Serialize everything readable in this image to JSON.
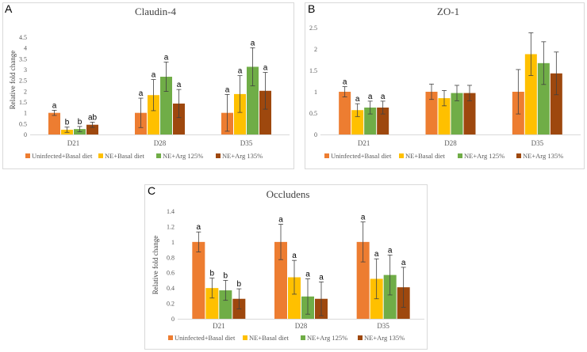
{
  "chart_data": [
    {
      "panel": "A",
      "type": "bar",
      "title": "Claudin-4",
      "ylabel": "Relative fold change",
      "xlabel": "",
      "ylim": [
        0,
        4.5
      ],
      "yticks": [
        "0",
        "0.5",
        "1",
        "1.5",
        "2",
        "2.5",
        "3",
        "3.5",
        "4",
        "4.5"
      ],
      "categories": [
        "D21",
        "D28",
        "D35"
      ],
      "grid": false,
      "legend": "bottom",
      "series": [
        {
          "name": "Uninfected+Basal diet",
          "color": "#ED7D31",
          "values": [
            1.0,
            1.0,
            1.0
          ],
          "errors": [
            0.12,
            0.68,
            0.85
          ],
          "labels": [
            "a",
            "a",
            "a"
          ]
        },
        {
          "name": "NE+Basal diet",
          "color": "#FFC000",
          "values": [
            0.22,
            1.82,
            1.87
          ],
          "errors": [
            0.12,
            0.72,
            0.85
          ],
          "labels": [
            "b",
            "a",
            "a"
          ]
        },
        {
          "name": "NE+Arg 125%",
          "color": "#70AD47",
          "values": [
            0.25,
            2.67,
            3.13
          ],
          "errors": [
            0.12,
            0.68,
            0.88
          ],
          "labels": [
            "b",
            "a",
            "a"
          ]
        },
        {
          "name": "NE+Arg 135%",
          "color": "#9E480E",
          "values": [
            0.45,
            1.43,
            2.02
          ],
          "errors": [
            0.12,
            0.65,
            0.85
          ],
          "labels": [
            "ab",
            "a",
            "a"
          ]
        }
      ]
    },
    {
      "panel": "B",
      "type": "bar",
      "title": "ZO-1",
      "ylabel": "",
      "xlabel": "",
      "ylim": [
        0,
        2.5
      ],
      "yticks": [
        "0",
        "0.5",
        "1",
        "1.5",
        "2",
        "2.5"
      ],
      "categories": [
        "D21",
        "D28",
        "D35"
      ],
      "grid": false,
      "legend": "bottom",
      "series": [
        {
          "name": "Uninfected+Basal diet",
          "color": "#ED7D31",
          "values": [
            1.0,
            1.0,
            1.0
          ],
          "errors": [
            0.12,
            0.18,
            0.52
          ],
          "labels": [
            "a",
            "",
            ""
          ]
        },
        {
          "name": "NE+Basal diet",
          "color": "#FFC000",
          "values": [
            0.57,
            0.85,
            1.88
          ],
          "errors": [
            0.15,
            0.18,
            0.5
          ],
          "labels": [
            "a",
            "",
            ""
          ]
        },
        {
          "name": "NE+Arg 125%",
          "color": "#70AD47",
          "values": [
            0.63,
            0.97,
            1.67
          ],
          "errors": [
            0.15,
            0.18,
            0.5
          ],
          "labels": [
            "a",
            "",
            ""
          ]
        },
        {
          "name": "NE+Arg 135%",
          "color": "#9E480E",
          "values": [
            0.63,
            0.97,
            1.43
          ],
          "errors": [
            0.15,
            0.18,
            0.5
          ],
          "labels": [
            "a",
            "",
            ""
          ]
        }
      ]
    },
    {
      "panel": "C",
      "type": "bar",
      "title": "Occludens",
      "ylabel": "Relative fold change",
      "xlabel": "",
      "ylim": [
        0,
        1.4
      ],
      "yticks": [
        "0",
        "0.2",
        "0.4",
        "0.6",
        "0.8",
        "1",
        "1.2",
        "1.4"
      ],
      "categories": [
        "D21",
        "D28",
        "D35"
      ],
      "grid": false,
      "legend": "bottom",
      "series": [
        {
          "name": "Uninfected+Basal diet",
          "color": "#ED7D31",
          "values": [
            1.0,
            1.0,
            1.0
          ],
          "errors": [
            0.13,
            0.23,
            0.26
          ],
          "labels": [
            "a",
            "a",
            "a"
          ]
        },
        {
          "name": "NE+Basal diet",
          "color": "#FFC000",
          "values": [
            0.4,
            0.54,
            0.52
          ],
          "errors": [
            0.13,
            0.22,
            0.26
          ],
          "labels": [
            "b",
            "a",
            "a"
          ]
        },
        {
          "name": "NE+Arg 125%",
          "color": "#70AD47",
          "values": [
            0.37,
            0.29,
            0.57
          ],
          "errors": [
            0.13,
            0.23,
            0.26
          ],
          "labels": [
            "b",
            "a",
            "a"
          ]
        },
        {
          "name": "NE+Arg 135%",
          "color": "#9E480E",
          "values": [
            0.26,
            0.26,
            0.41
          ],
          "errors": [
            0.13,
            0.22,
            0.26
          ],
          "labels": [
            "b",
            "a",
            "a"
          ]
        }
      ]
    }
  ]
}
